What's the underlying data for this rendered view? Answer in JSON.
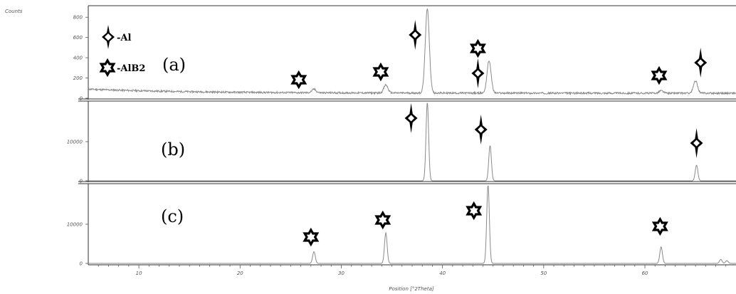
{
  "chart_data": {
    "type": "line",
    "ylabel": "Counts",
    "xlabel": "Position [°2Theta]",
    "xlim": [
      5,
      69
    ],
    "x_ticks": [
      10,
      20,
      30,
      40,
      50,
      60
    ],
    "grid": false,
    "legend": {
      "placement": "top-left",
      "entries": [
        {
          "label": "-Al",
          "marker": "diamond-cross"
        },
        {
          "label": "-AlB2",
          "marker": "hexagram"
        }
      ]
    },
    "panels": [
      {
        "name": "(a)",
        "ylim": [
          0,
          900
        ],
        "y_ticks": [
          0,
          200,
          400,
          600,
          800
        ],
        "baseline": 50,
        "peaks": [
          {
            "x": 27.3,
            "y": 85,
            "phase": "AlB2"
          },
          {
            "x": 34.4,
            "y": 130,
            "phase": "AlB2"
          },
          {
            "x": 38.5,
            "y": 880,
            "phase": "Al"
          },
          {
            "x": 44.6,
            "y": 370,
            "phase": "Al+AlB2"
          },
          {
            "x": 61.6,
            "y": 75,
            "phase": "AlB2"
          },
          {
            "x": 65.0,
            "y": 170,
            "phase": "Al"
          }
        ]
      },
      {
        "name": "(b)",
        "ylim": [
          0,
          20000
        ],
        "y_ticks": [
          0,
          10000
        ],
        "baseline": 0,
        "peaks": [
          {
            "x": 38.5,
            "y": 20000,
            "phase": "Al"
          },
          {
            "x": 44.7,
            "y": 9000,
            "phase": "Al"
          },
          {
            "x": 65.1,
            "y": 4000,
            "phase": "Al"
          }
        ]
      },
      {
        "name": "(c)",
        "ylim": [
          0,
          20000
        ],
        "y_ticks": [
          0,
          10000
        ],
        "baseline": 0,
        "peaks": [
          {
            "x": 27.3,
            "y": 3000,
            "phase": "AlB2"
          },
          {
            "x": 34.4,
            "y": 7800,
            "phase": "AlB2"
          },
          {
            "x": 44.5,
            "y": 20000,
            "phase": "AlB2"
          },
          {
            "x": 61.6,
            "y": 4200,
            "phase": "AlB2"
          },
          {
            "x": 67.5,
            "y": 1000,
            "phase": "AlB2"
          },
          {
            "x": 68.1,
            "y": 700,
            "phase": "AlB2"
          }
        ]
      }
    ]
  }
}
